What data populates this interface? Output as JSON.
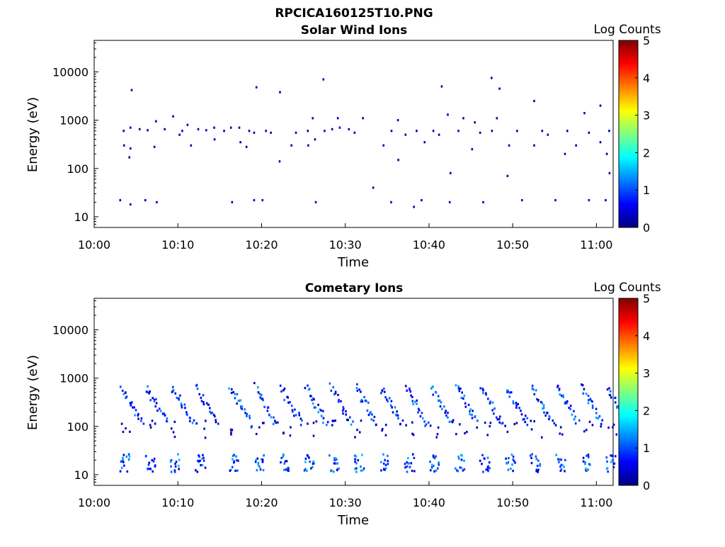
{
  "figure": {
    "title": "RPCICA160125T10.PNG"
  },
  "chart_data": [
    {
      "type": "heatmap",
      "title": "Solar Wind Ions",
      "xlabel": "Time",
      "ylabel": "Energy (eV)",
      "yscale": "log",
      "ylim": [
        6,
        45000
      ],
      "xlim": [
        "10:00",
        "11:02"
      ],
      "xticks": [
        "10:00",
        "10:10",
        "10:20",
        "10:30",
        "10:40",
        "10:50",
        "11:00"
      ],
      "yticks": [
        "10",
        "100",
        "1000",
        "10000"
      ],
      "colorbar": {
        "label": "Log Counts",
        "range": [
          0,
          5
        ],
        "ticks": [
          "0",
          "1",
          "2",
          "3",
          "4",
          "5"
        ],
        "colormap": "jet"
      },
      "background": "#ffffff",
      "dominant_color": "#00008f",
      "description_bands_eV": [
        [
          150,
          1100
        ],
        [
          15,
          28
        ]
      ],
      "points": [
        {
          "x": "10:03",
          "y": 600,
          "v": 0.2
        },
        {
          "x": "10:03",
          "y": 300,
          "v": 0.2
        },
        {
          "x": "10:03",
          "y": 22,
          "v": 0.3
        },
        {
          "x": "10:04",
          "y": 4200,
          "v": 0.2
        },
        {
          "x": "10:04",
          "y": 700,
          "v": 0.2
        },
        {
          "x": "10:04",
          "y": 260,
          "v": 0.4
        },
        {
          "x": "10:04",
          "y": 170,
          "v": 0.2
        },
        {
          "x": "10:04",
          "y": 18,
          "v": 0.3
        },
        {
          "x": "10:05",
          "y": 650,
          "v": 0.2
        },
        {
          "x": "10:06",
          "y": 620,
          "v": 0.3
        },
        {
          "x": "10:06",
          "y": 22,
          "v": 0.3
        },
        {
          "x": "10:07",
          "y": 950,
          "v": 0.2
        },
        {
          "x": "10:07",
          "y": 280,
          "v": 0.2
        },
        {
          "x": "10:07",
          "y": 20,
          "v": 0.4
        },
        {
          "x": "10:08",
          "y": 650,
          "v": 0.2
        },
        {
          "x": "10:09",
          "y": 1200,
          "v": 0.2
        },
        {
          "x": "10:10",
          "y": 600,
          "v": 0.5
        },
        {
          "x": "10:10",
          "y": 500,
          "v": 0.2
        },
        {
          "x": "10:11",
          "y": 800,
          "v": 0.2
        },
        {
          "x": "10:11",
          "y": 300,
          "v": 0.2
        },
        {
          "x": "10:12",
          "y": 650,
          "v": 0.2
        },
        {
          "x": "10:13",
          "y": 620,
          "v": 0.3
        },
        {
          "x": "10:14",
          "y": 700,
          "v": 0.2
        },
        {
          "x": "10:14",
          "y": 400,
          "v": 0.2
        },
        {
          "x": "10:15",
          "y": 600,
          "v": 0.3
        },
        {
          "x": "10:16",
          "y": 700,
          "v": 0.2
        },
        {
          "x": "10:16",
          "y": 20,
          "v": 0.3
        },
        {
          "x": "10:17",
          "y": 350,
          "v": 0.2
        },
        {
          "x": "10:17",
          "y": 700,
          "v": 0.2
        },
        {
          "x": "10:18",
          "y": 280,
          "v": 0.2
        },
        {
          "x": "10:18",
          "y": 600,
          "v": 0.2
        },
        {
          "x": "10:19",
          "y": 4800,
          "v": 0.2
        },
        {
          "x": "10:19",
          "y": 550,
          "v": 0.2
        },
        {
          "x": "10:19",
          "y": 22,
          "v": 0.3
        },
        {
          "x": "10:20",
          "y": 600,
          "v": 0.3
        },
        {
          "x": "10:20",
          "y": 22,
          "v": 0.3
        },
        {
          "x": "10:21",
          "y": 550,
          "v": 0.2
        },
        {
          "x": "10:22",
          "y": 140,
          "v": 0.2
        },
        {
          "x": "10:22",
          "y": 3800,
          "v": 0.2
        },
        {
          "x": "10:23",
          "y": 300,
          "v": 0.2
        },
        {
          "x": "10:24",
          "y": 550,
          "v": 0.3
        },
        {
          "x": "10:25",
          "y": 300,
          "v": 0.2
        },
        {
          "x": "10:25",
          "y": 600,
          "v": 0.2
        },
        {
          "x": "10:26",
          "y": 1100,
          "v": 0.4
        },
        {
          "x": "10:26",
          "y": 400,
          "v": 0.3
        },
        {
          "x": "10:26",
          "y": 20,
          "v": 0.3
        },
        {
          "x": "10:27",
          "y": 7000,
          "v": 0.2
        },
        {
          "x": "10:27",
          "y": 600,
          "v": 0.3
        },
        {
          "x": "10:28",
          "y": 650,
          "v": 0.2
        },
        {
          "x": "10:29",
          "y": 1100,
          "v": 0.3
        },
        {
          "x": "10:29",
          "y": 700,
          "v": 0.5
        },
        {
          "x": "10:30",
          "y": 650,
          "v": 0.3
        },
        {
          "x": "10:31",
          "y": 550,
          "v": 0.2
        },
        {
          "x": "10:32",
          "y": 1100,
          "v": 0.2
        },
        {
          "x": "10:33",
          "y": 40,
          "v": 0.2
        },
        {
          "x": "10:34",
          "y": 300,
          "v": 0.2
        },
        {
          "x": "10:35",
          "y": 600,
          "v": 0.2
        },
        {
          "x": "10:35",
          "y": 20,
          "v": 0.4
        },
        {
          "x": "10:36",
          "y": 1000,
          "v": 0.2
        },
        {
          "x": "10:36",
          "y": 150,
          "v": 0.2
        },
        {
          "x": "10:37",
          "y": 500,
          "v": 0.2
        },
        {
          "x": "10:38",
          "y": 16,
          "v": 0.3
        },
        {
          "x": "10:38",
          "y": 600,
          "v": 0.3
        },
        {
          "x": "10:39",
          "y": 22,
          "v": 0.3
        },
        {
          "x": "10:39",
          "y": 350,
          "v": 0.2
        },
        {
          "x": "10:40",
          "y": 600,
          "v": 0.3
        },
        {
          "x": "10:41",
          "y": 5000,
          "v": 0.2
        },
        {
          "x": "10:41",
          "y": 500,
          "v": 0.2
        },
        {
          "x": "10:42",
          "y": 1300,
          "v": 0.2
        },
        {
          "x": "10:42",
          "y": 80,
          "v": 0.2
        },
        {
          "x": "10:42",
          "y": 20,
          "v": 0.3
        },
        {
          "x": "10:43",
          "y": 600,
          "v": 0.3
        },
        {
          "x": "10:44",
          "y": 1100,
          "v": 0.2
        },
        {
          "x": "10:45",
          "y": 250,
          "v": 0.2
        },
        {
          "x": "10:45",
          "y": 900,
          "v": 0.2
        },
        {
          "x": "10:46",
          "y": 550,
          "v": 0.3
        },
        {
          "x": "10:46",
          "y": 20,
          "v": 0.3
        },
        {
          "x": "10:47",
          "y": 7500,
          "v": 0.2
        },
        {
          "x": "10:47",
          "y": 600,
          "v": 0.2
        },
        {
          "x": "10:48",
          "y": 4500,
          "v": 0.2
        },
        {
          "x": "10:48",
          "y": 1100,
          "v": 0.3
        },
        {
          "x": "10:49",
          "y": 300,
          "v": 0.3
        },
        {
          "x": "10:49",
          "y": 70,
          "v": 0.2
        },
        {
          "x": "10:50",
          "y": 600,
          "v": 0.2
        },
        {
          "x": "10:51",
          "y": 22,
          "v": 0.3
        },
        {
          "x": "10:52",
          "y": 2500,
          "v": 0.2
        },
        {
          "x": "10:52",
          "y": 300,
          "v": 0.3
        },
        {
          "x": "10:53",
          "y": 600,
          "v": 0.2
        },
        {
          "x": "10:54",
          "y": 500,
          "v": 0.2
        },
        {
          "x": "10:55",
          "y": 22,
          "v": 0.3
        },
        {
          "x": "10:56",
          "y": 600,
          "v": 0.3
        },
        {
          "x": "10:56",
          "y": 200,
          "v": 0.2
        },
        {
          "x": "10:57",
          "y": 300,
          "v": 0.2
        },
        {
          "x": "10:58",
          "y": 1400,
          "v": 0.2
        },
        {
          "x": "10:59",
          "y": 550,
          "v": 0.2
        },
        {
          "x": "10:59",
          "y": 22,
          "v": 0.4
        },
        {
          "x": "11:00",
          "y": 2000,
          "v": 0.2
        },
        {
          "x": "11:00",
          "y": 350,
          "v": 0.3
        },
        {
          "x": "11:01",
          "y": 600,
          "v": 0.4
        },
        {
          "x": "11:01",
          "y": 200,
          "v": 0.2
        },
        {
          "x": "11:01",
          "y": 80,
          "v": 0.2
        },
        {
          "x": "11:01",
          "y": 22,
          "v": 0.3
        }
      ]
    },
    {
      "type": "heatmap",
      "title": "Cometary Ions",
      "xlabel": "Time",
      "ylabel": "Energy (eV)",
      "yscale": "log",
      "ylim": [
        6,
        45000
      ],
      "xlim": [
        "10:00",
        "11:02"
      ],
      "xticks": [
        "10:00",
        "10:10",
        "10:20",
        "10:30",
        "10:40",
        "10:50",
        "11:00"
      ],
      "yticks": [
        "10",
        "100",
        "1000",
        "10000"
      ],
      "colorbar": {
        "label": "Log Counts",
        "range": [
          0,
          5
        ],
        "ticks": [
          "0",
          "1",
          "2",
          "3",
          "4",
          "5"
        ],
        "colormap": "jet"
      },
      "background": "#ffffff",
      "dominant_color": "#0010c8",
      "periodic_bursts_start_times": [
        "10:03",
        "10:06",
        "10:09",
        "10:12",
        "10:16",
        "10:19",
        "10:22",
        "10:25",
        "10:28",
        "10:31",
        "10:34",
        "10:37",
        "10:40",
        "10:43",
        "10:46",
        "10:49",
        "10:52",
        "10:55",
        "10:58",
        "11:01"
      ],
      "burst_energy_range_eV": [
        120,
        700
      ],
      "low_band_energy_range_eV": [
        12,
        28
      ],
      "peak_log_counts": 1.3
    }
  ]
}
